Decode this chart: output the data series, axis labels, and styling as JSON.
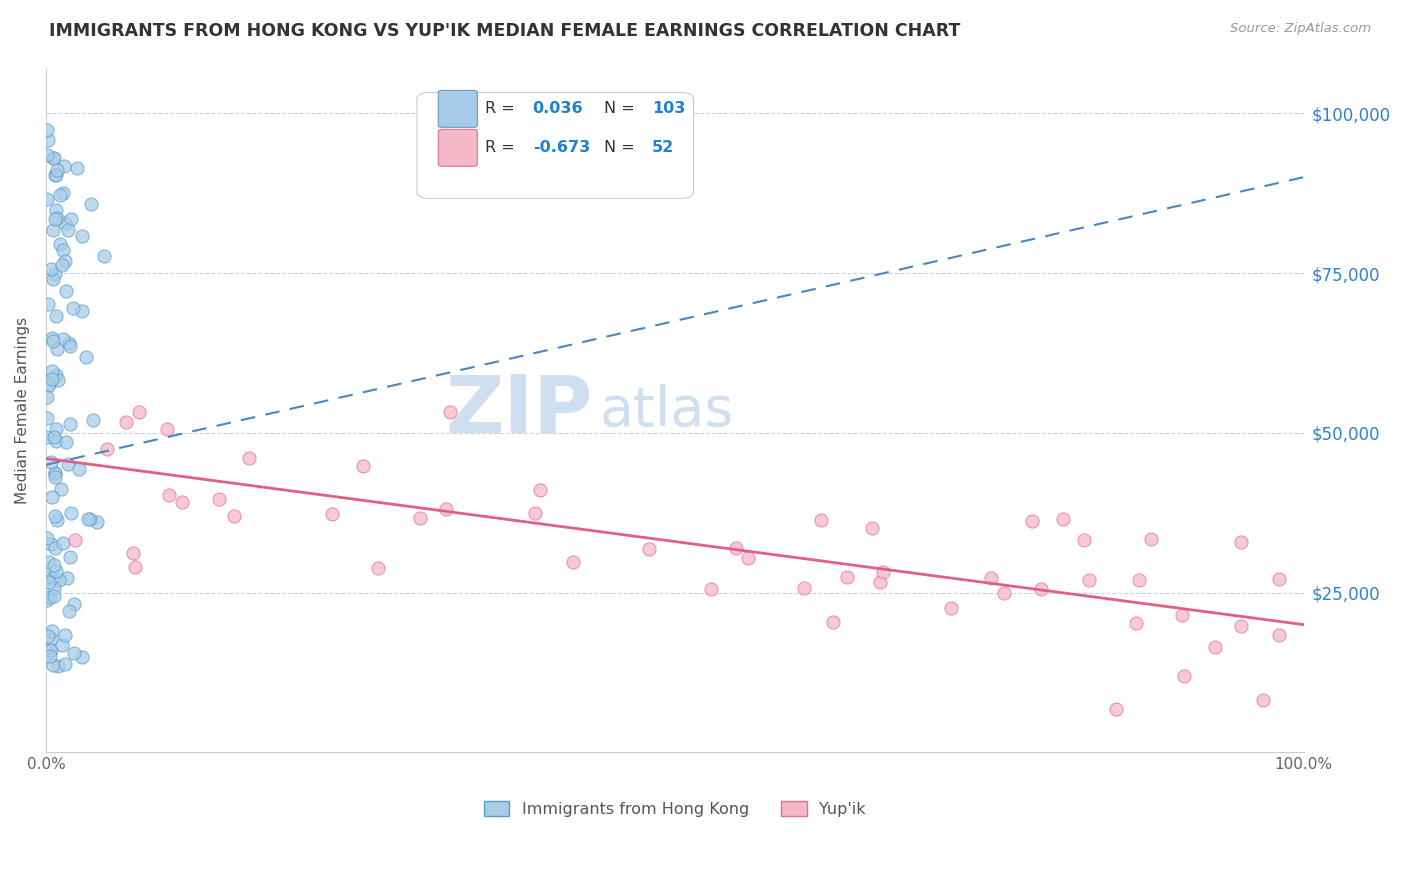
{
  "title": "IMMIGRANTS FROM HONG KONG VS YUP'IK MEDIAN FEMALE EARNINGS CORRELATION CHART",
  "source": "Source: ZipAtlas.com",
  "ylabel": "Median Female Earnings",
  "ytick_labels": [
    "$25,000",
    "$50,000",
    "$75,000",
    "$100,000"
  ],
  "ytick_values": [
    25000,
    50000,
    75000,
    100000
  ],
  "ylim": [
    0,
    107000
  ],
  "xlim": [
    0.0,
    1.0
  ],
  "r_hk": 0.036,
  "n_hk": 103,
  "r_yupik": -0.673,
  "n_yupik": 52,
  "color_hk_fill": "#a8cce8",
  "color_hk_edge": "#5b9dc9",
  "color_hk_line": "#4a86bf",
  "color_yupik_fill": "#f5b8c8",
  "color_yupik_edge": "#e07090",
  "color_yupik_line": "#e06080",
  "color_legend_r": "#2080d0",
  "color_ytick": "#3080d0",
  "watermark_zip": "ZIP",
  "watermark_atlas": "atlas",
  "watermark_color": "#d0dff0",
  "legend_r1_label": "R = ",
  "legend_n1_label": "N = ",
  "legend_r1_val": "0.036",
  "legend_n1_val": "103",
  "legend_r2_val": "-0.673",
  "legend_n2_val": "52",
  "hk_trend_x0": 0.0,
  "hk_trend_y0": 45000,
  "hk_trend_x1": 1.0,
  "hk_trend_y1": 90000,
  "yupik_trend_x0": 0.0,
  "yupik_trend_y0": 46000,
  "yupik_trend_x1": 1.0,
  "yupik_trend_y1": 20000
}
